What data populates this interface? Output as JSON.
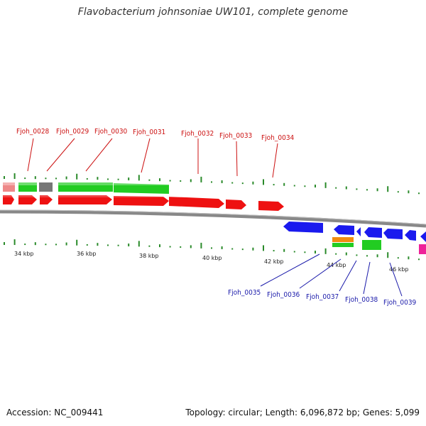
{
  "title": "Flavobacterium johnsoniae UW101, complete genome",
  "accession": "Accession: NC_009441",
  "topology": "Topology: circular; Length: 6,096,872 bp; Genes: 5,099",
  "colors": {
    "cds": "#ee1111",
    "gene": "#22cc22",
    "rrna_like": "#ee8888",
    "gray": "#777777",
    "minus_strand": "#1a1aee",
    "orange": "#f08c10",
    "magenta": "#ee2299",
    "top_label": "#cc1111",
    "bottom_label": "#1a1aaa",
    "gc_tick": "#2a8a2a"
  },
  "top_labels": [
    "Fjoh_0028",
    "Fjoh_0029",
    "Fjoh_0030",
    "Fjoh_0031",
    "Fjoh_0032",
    "Fjoh_0033",
    "Fjoh_0034"
  ],
  "bottom_labels": [
    "Fjoh_0035",
    "Fjoh_0036",
    "Fjoh_0037",
    "Fjoh_0038",
    "Fjoh_0039"
  ],
  "scale_labels": [
    "34 kbp",
    "36 kbp",
    "38 kbp",
    "40 kbp",
    "42 kbp",
    "44 kbp",
    "46 kbp"
  ]
}
